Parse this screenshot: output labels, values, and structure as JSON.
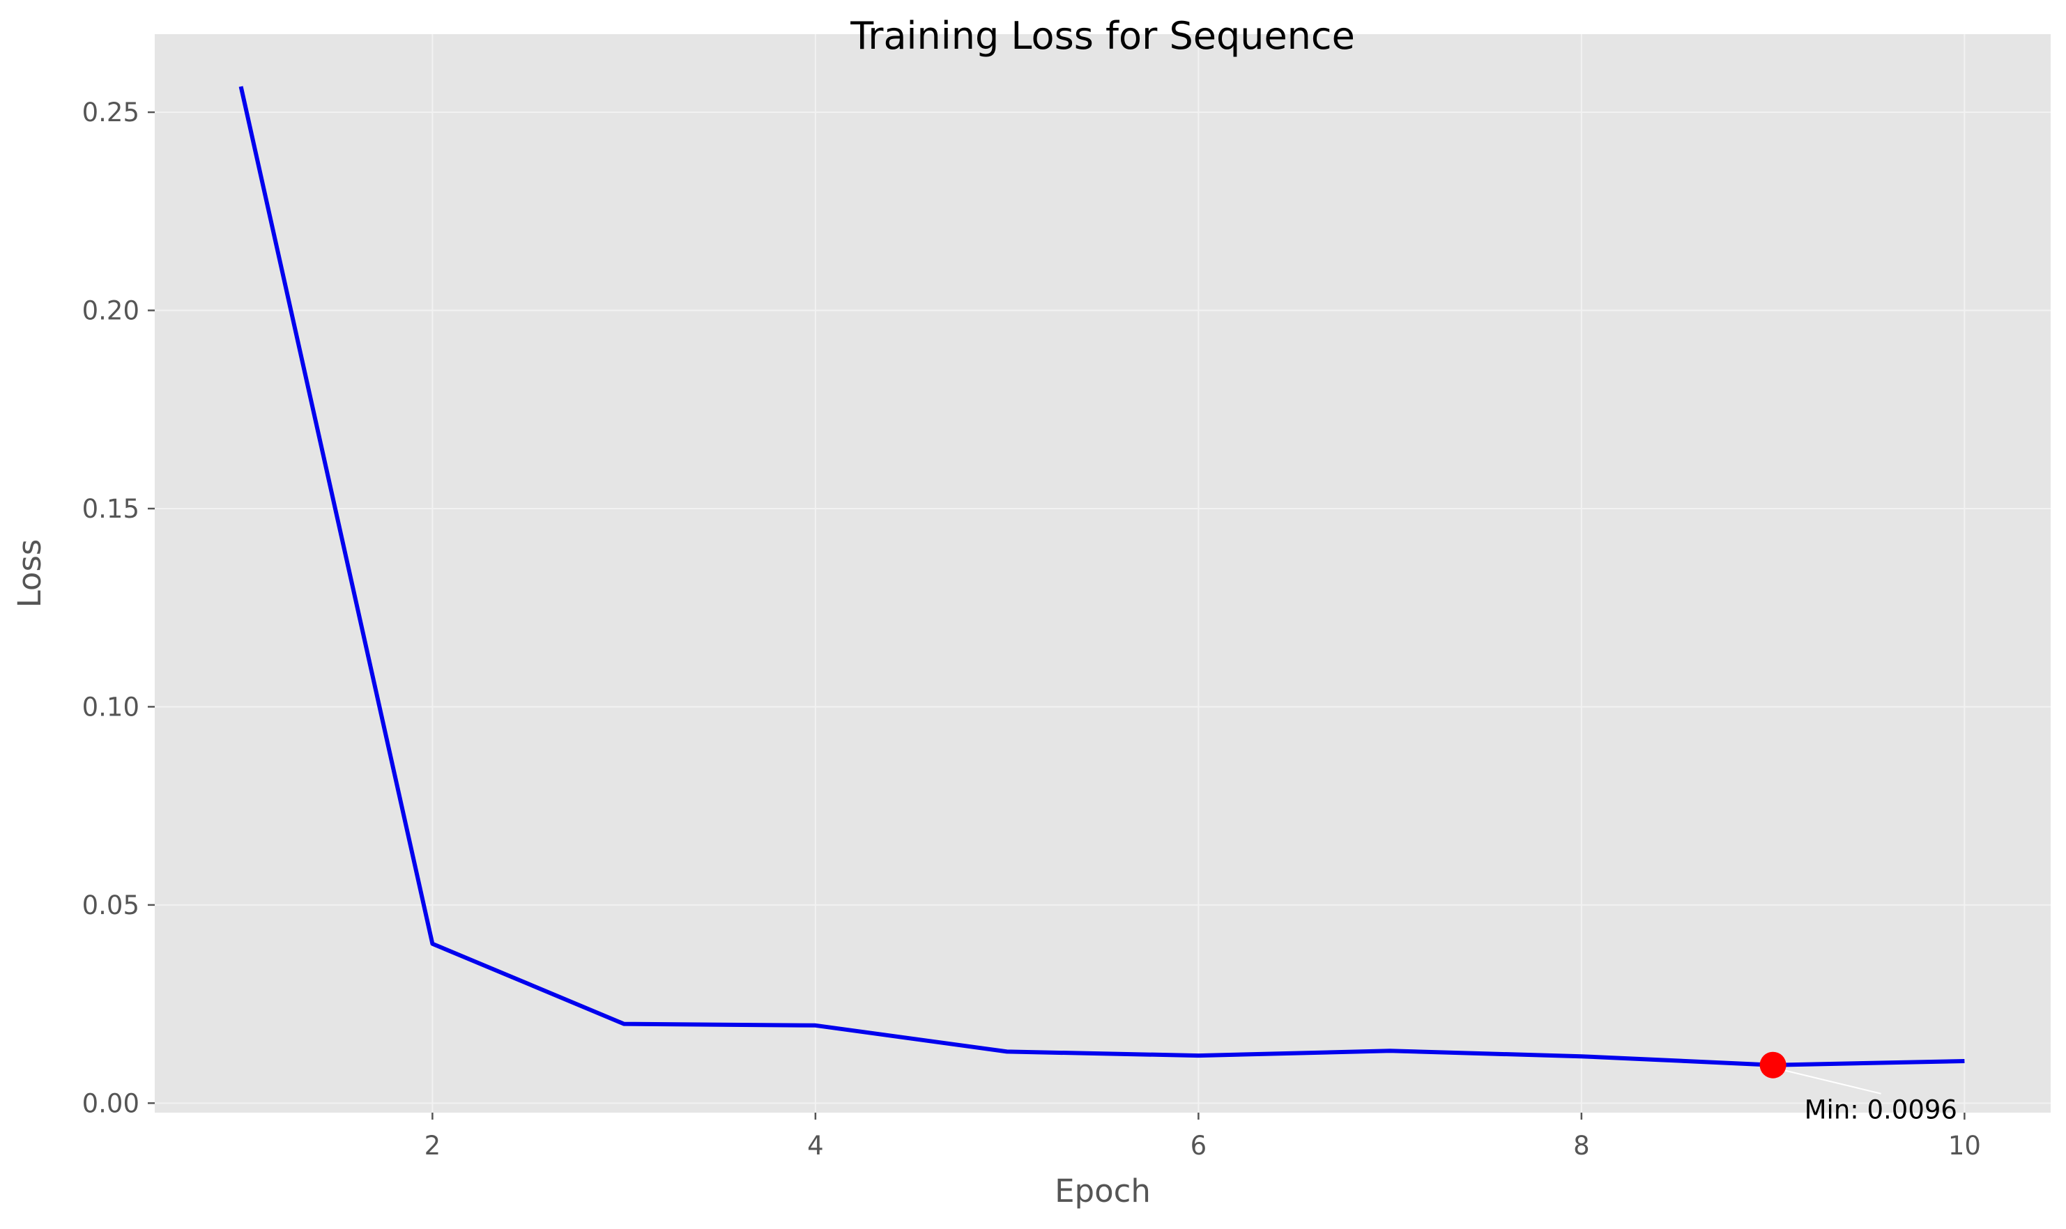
{
  "chart_data": {
    "type": "line",
    "title": "Training Loss for Sequence",
    "xlabel": "Epoch",
    "ylabel": "Loss",
    "xlim": [
      0.55,
      10.45
    ],
    "ylim": [
      -0.0024,
      0.2697
    ],
    "xticks": [
      2,
      4,
      6,
      8,
      10
    ],
    "xtick_labels": [
      "2",
      "4",
      "6",
      "8",
      "10"
    ],
    "yticks": [
      0.0,
      0.05,
      0.1,
      0.15,
      0.2,
      0.25
    ],
    "ytick_labels": [
      "0.00",
      "0.05",
      "0.10",
      "0.15",
      "0.20",
      "0.25"
    ],
    "grid": true,
    "series": [
      {
        "color": "#0000ee",
        "x": [
          1,
          2,
          3,
          4,
          5,
          6,
          7,
          8,
          9,
          10
        ],
        "y": [
          0.2565,
          0.0402,
          0.02,
          0.0196,
          0.013,
          0.012,
          0.0132,
          0.0118,
          0.0096,
          0.0106
        ]
      }
    ],
    "annotations": [
      {
        "text": "Min: 0.0096",
        "x": 9,
        "y": 0.0096,
        "marker_color": "#ff0000"
      }
    ],
    "colors": {
      "plot_background": "#e5e5e5",
      "grid": "#f2f2f2",
      "line": "#0000ee",
      "marker": "#ff0000"
    }
  }
}
